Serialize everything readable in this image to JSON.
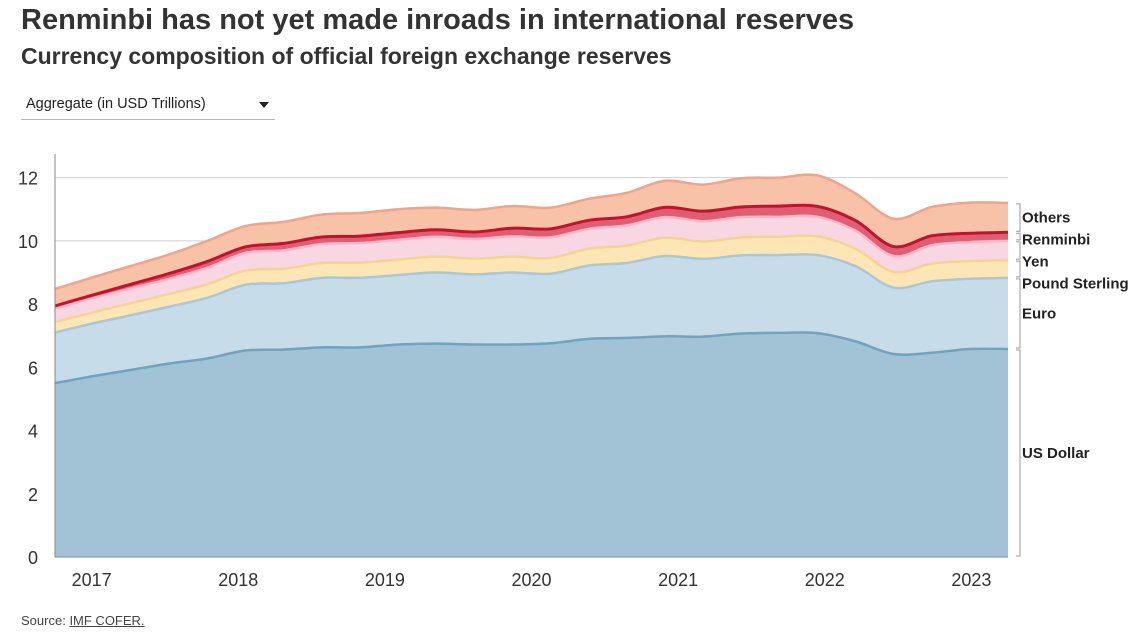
{
  "header": {
    "title": "Renminbi has not yet made inroads in international reserves",
    "subtitle": "Currency composition of official foreign exchange reserves"
  },
  "dropdown": {
    "selected": "Aggregate (in USD Trillions)",
    "icon": "caret-down-icon"
  },
  "footer": {
    "source_label": "Source:",
    "source_link": "IMF COFER."
  },
  "chart_data": {
    "type": "area",
    "stacked": true,
    "x_start": 2016.75,
    "x_end": 2023.25,
    "xlim": [
      2016.75,
      2023.25
    ],
    "ylim": [
      0,
      13
    ],
    "yticks": [
      0,
      2,
      4,
      6,
      8,
      10,
      12
    ],
    "xticks": [
      2017,
      2018,
      2019,
      2020,
      2021,
      2022,
      2023
    ],
    "xtick_labels": [
      "2017",
      "2018",
      "2019",
      "2020",
      "2021",
      "2022",
      "2023"
    ],
    "grid": true,
    "legend_placement": "right",
    "series": [
      {
        "name": "US Dollar",
        "fill": "#a2c3d6",
        "stroke": "#6fa3c1",
        "values": [
          5.5,
          5.72,
          5.92,
          6.12,
          6.28,
          6.53,
          6.56,
          6.63,
          6.63,
          6.72,
          6.75,
          6.72,
          6.72,
          6.76,
          6.9,
          6.93,
          6.98,
          6.97,
          7.07,
          7.09,
          7.08,
          6.82,
          6.42,
          6.46,
          6.58,
          6.58
        ]
      },
      {
        "name": "Euro",
        "fill": "#c6dce8",
        "stroke": "#a7c8da",
        "values": [
          1.6,
          1.67,
          1.73,
          1.8,
          1.92,
          2.08,
          2.1,
          2.2,
          2.2,
          2.2,
          2.25,
          2.22,
          2.28,
          2.2,
          2.32,
          2.37,
          2.54,
          2.46,
          2.47,
          2.46,
          2.47,
          2.38,
          2.1,
          2.26,
          2.22,
          2.25
        ]
      },
      {
        "name": "Pound Sterling",
        "fill": "#fce6b6",
        "stroke": "#f5d58c",
        "values": [
          0.33,
          0.35,
          0.38,
          0.4,
          0.43,
          0.45,
          0.46,
          0.47,
          0.48,
          0.49,
          0.5,
          0.5,
          0.5,
          0.5,
          0.53,
          0.55,
          0.58,
          0.55,
          0.57,
          0.58,
          0.59,
          0.55,
          0.5,
          0.56,
          0.56,
          0.56
        ]
      },
      {
        "name": "Yen",
        "fill": "#f8d6e2",
        "stroke": "#f2b9cc",
        "values": [
          0.43,
          0.45,
          0.47,
          0.48,
          0.52,
          0.56,
          0.58,
          0.6,
          0.62,
          0.62,
          0.63,
          0.62,
          0.64,
          0.65,
          0.63,
          0.64,
          0.65,
          0.64,
          0.64,
          0.63,
          0.62,
          0.57,
          0.5,
          0.58,
          0.6,
          0.61
        ]
      },
      {
        "name": "Renminbi",
        "fill": "#dd5f73",
        "stroke": "#c8102e",
        "values": [
          0.08,
          0.1,
          0.13,
          0.17,
          0.2,
          0.19,
          0.22,
          0.22,
          0.22,
          0.23,
          0.22,
          0.22,
          0.26,
          0.27,
          0.27,
          0.27,
          0.31,
          0.32,
          0.32,
          0.34,
          0.33,
          0.32,
          0.3,
          0.3,
          0.28,
          0.27
        ]
      },
      {
        "name": "Others",
        "fill": "#f7c2a8",
        "stroke": "#f2a488",
        "values": [
          0.54,
          0.56,
          0.58,
          0.6,
          0.65,
          0.66,
          0.68,
          0.71,
          0.73,
          0.74,
          0.7,
          0.7,
          0.7,
          0.67,
          0.68,
          0.76,
          0.84,
          0.84,
          0.91,
          0.9,
          0.98,
          0.86,
          0.88,
          0.91,
          0.97,
          0.93
        ]
      }
    ]
  }
}
